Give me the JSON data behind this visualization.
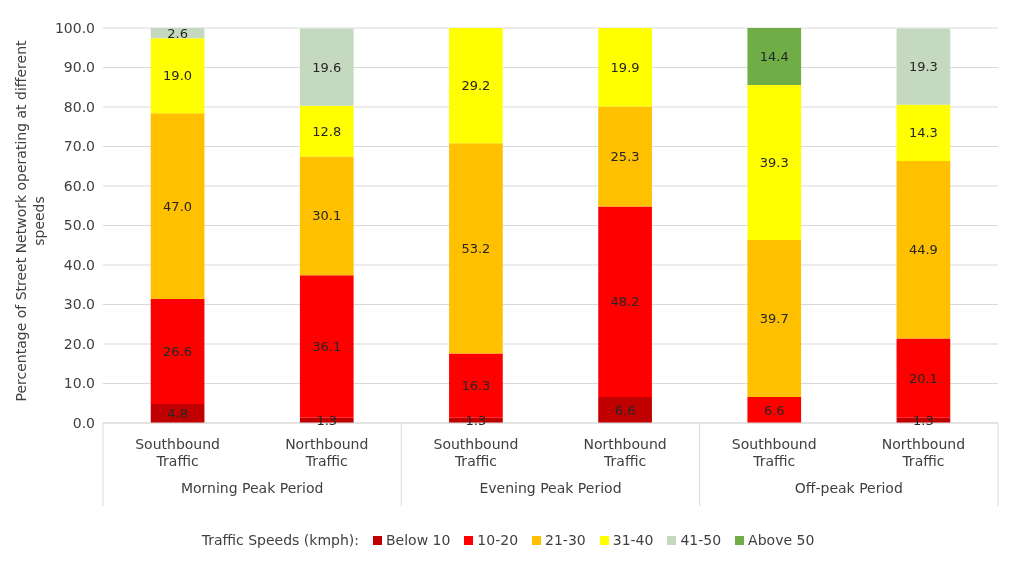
{
  "chart_data": {
    "type": "bar",
    "stacked": true,
    "ylabel": "Percentage of Street Network operating at different speeds",
    "legend_title": "Traffic Speeds (kmph):",
    "categories": [
      "Southbound Traffic",
      "Northbound Traffic",
      "Southbound Traffic",
      "Northbound Traffic",
      "Southbound Traffic",
      "Northbound Traffic"
    ],
    "annotations": [
      "Morning Peak Period",
      "Evening Peak Period",
      "Off-peak Period"
    ],
    "series": [
      {
        "name": "Below 10",
        "color": "#c00000",
        "values": [
          4.8,
          1.3,
          1.3,
          6.6,
          null,
          1.3
        ],
        "value_labels": [
          "4.8",
          "1.3",
          "1.3",
          "6.6",
          null,
          "1.3"
        ]
      },
      {
        "name": "10-20",
        "color": "#ff0000",
        "values": [
          26.6,
          36.1,
          16.3,
          48.2,
          6.6,
          20.1
        ],
        "value_labels": [
          "26.6",
          "36.1",
          "16.3",
          "48.2",
          "6.6",
          "20.1"
        ]
      },
      {
        "name": "21-30",
        "color": "#ffc000",
        "values": [
          47.0,
          30.1,
          53.2,
          25.3,
          39.7,
          44.9
        ],
        "value_labels": [
          "47.0",
          "30.1",
          "53.2",
          "25.3",
          "39.7",
          "44.9"
        ]
      },
      {
        "name": "31-40",
        "color": "#ffff00",
        "values": [
          19.0,
          12.8,
          29.2,
          19.9,
          39.3,
          14.3
        ],
        "value_labels": [
          "19.0",
          "12.8",
          "29.2",
          "19.9",
          "39.3",
          "14.3"
        ]
      },
      {
        "name": "41-50",
        "color": "#c5d9c0",
        "values": [
          2.6,
          19.6,
          null,
          null,
          null,
          19.3
        ],
        "value_labels": [
          "2.6",
          "19.6",
          null,
          null,
          null,
          "19.3"
        ]
      },
      {
        "name": "Above 50",
        "color": "#70ad47",
        "values": [
          null,
          null,
          null,
          null,
          14.4,
          null
        ],
        "value_labels": [
          null,
          null,
          null,
          null,
          "14.4",
          null
        ]
      }
    ],
    "ylim": [
      0,
      100
    ],
    "yticks": [
      {
        "value": 0,
        "label": "0.0"
      },
      {
        "value": 10,
        "label": "10.0"
      },
      {
        "value": 20,
        "label": "20.0"
      },
      {
        "value": 30,
        "label": "30.0"
      },
      {
        "value": 40,
        "label": "40.0"
      },
      {
        "value": 50,
        "label": "50.0"
      },
      {
        "value": 60,
        "label": "60.0"
      },
      {
        "value": 70,
        "label": "70.0"
      },
      {
        "value": 80,
        "label": "80.0"
      },
      {
        "value": 90,
        "label": "90.0"
      },
      {
        "value": 100,
        "label": "100.0"
      }
    ],
    "grid": "y",
    "legend": "bottom"
  }
}
